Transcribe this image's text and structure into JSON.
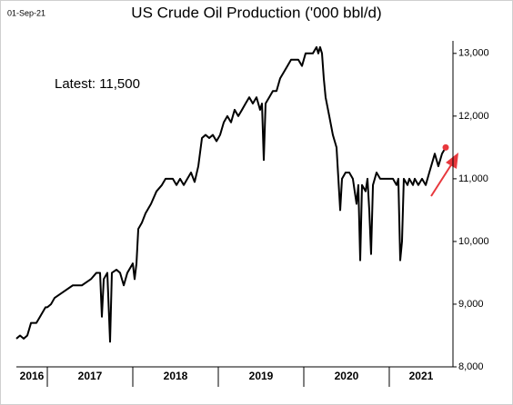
{
  "chart_data": {
    "type": "line",
    "title": "US Crude Oil Production ('000 bbl/d)",
    "date": "01-Sep-21",
    "annotation": "Latest:  11,500",
    "color": "#000000",
    "last_point_color": "#e8383d",
    "x": [
      2016.638,
      2016.681,
      2016.723,
      2016.766,
      2016.809,
      2016.872,
      2016.915,
      2016.979,
      2017,
      2017.043,
      2017.085,
      2017.191,
      2017.298,
      2017.404,
      2017.457,
      2017.511,
      2017.574,
      2017.617,
      2017.638,
      2017.66,
      2017.702,
      2017.734,
      2017.755,
      2017.809,
      2017.851,
      2017.894,
      2017.936,
      2017.979,
      2018,
      2018.021,
      2018.043,
      2018.064,
      2018.106,
      2018.149,
      2018.213,
      2018.277,
      2018.34,
      2018.383,
      2018.426,
      2018.468,
      2018.511,
      2018.553,
      2018.596,
      2018.638,
      2018.681,
      2018.723,
      2018.766,
      2018.809,
      2018.851,
      2018.894,
      2018.936,
      2018.979,
      2019.021,
      2019.064,
      2019.106,
      2019.149,
      2019.191,
      2019.234,
      2019.277,
      2019.319,
      2019.362,
      2019.404,
      2019.447,
      2019.489,
      2019.511,
      2019.532,
      2019.553,
      2019.596,
      2019.638,
      2019.681,
      2019.723,
      2019.766,
      2019.809,
      2019.851,
      2019.894,
      2019.936,
      2019.979,
      2020.021,
      2020.064,
      2020.106,
      2020.149,
      2020.17,
      2020.191,
      2020.213,
      2020.234,
      2020.255,
      2020.298,
      2020.34,
      2020.383,
      2020.426,
      2020.447,
      2020.489,
      2020.532,
      2020.574,
      2020.617,
      2020.638,
      2020.66,
      2020.681,
      2020.723,
      2020.745,
      2020.766,
      2020.787,
      2020.809,
      2020.851,
      2020.894,
      2020.936,
      2021,
      2021.043,
      2021.085,
      2021.106,
      2021.128,
      2021.149,
      2021.17,
      2021.213,
      2021.234,
      2021.277,
      2021.298,
      2021.34,
      2021.383,
      2021.426,
      2021.468,
      2021.511,
      2021.532,
      2021.574,
      2021.617,
      2021.66
    ],
    "values": [
      8450,
      8500,
      8450,
      8500,
      8700,
      8700,
      8800,
      8950,
      8950,
      9000,
      9100,
      9200,
      9300,
      9300,
      9350,
      9400,
      9500,
      9500,
      8800,
      9400,
      9500,
      8400,
      9500,
      9550,
      9500,
      9300,
      9500,
      9600,
      9650,
      9400,
      9650,
      10200,
      10300,
      10450,
      10600,
      10800,
      10900,
      11000,
      11000,
      11000,
      10900,
      11000,
      10900,
      11000,
      11100,
      10950,
      11200,
      11650,
      11700,
      11650,
      11700,
      11600,
      11700,
      11900,
      12000,
      11900,
      12100,
      12000,
      12100,
      12200,
      12300,
      12200,
      12300,
      12100,
      12200,
      11300,
      12200,
      12300,
      12400,
      12400,
      12600,
      12700,
      12800,
      12900,
      12900,
      12900,
      12800,
      13000,
      13000,
      13000,
      13100,
      13000,
      13100,
      13000,
      12600,
      12300,
      12000,
      11700,
      11500,
      10500,
      11000,
      11100,
      11100,
      11000,
      10600,
      10900,
      9700,
      10900,
      10800,
      11000,
      10500,
      9800,
      10900,
      11100,
      11000,
      11000,
      11000,
      11000,
      10900,
      11000,
      9700,
      10000,
      11000,
      10900,
      11000,
      10900,
      11000,
      10900,
      11000,
      10900,
      11100,
      11300,
      11400,
      11200,
      11400,
      11500
    ],
    "xlim": [
      2016.638,
      2021.745
    ],
    "xticks": [
      2016,
      2017,
      2018,
      2019,
      2020,
      2021
    ],
    "ylim": [
      8000,
      13200
    ],
    "yticks": [
      {
        "value": 8000,
        "label": "8,000"
      },
      {
        "value": 9000,
        "label": "9,000"
      },
      {
        "value": 10000,
        "label": "10,000"
      },
      {
        "value": 11000,
        "label": "11,000"
      },
      {
        "value": 12000,
        "label": "12,000"
      },
      {
        "value": 13000,
        "label": "13,000"
      }
    ]
  }
}
